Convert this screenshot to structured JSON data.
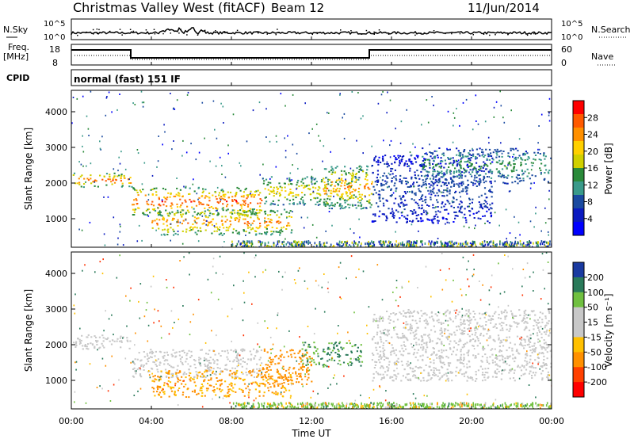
{
  "header": {
    "station": "Christmas Valley West (fitACF)",
    "beam": "Beam 12",
    "date": "11/Jun/2014"
  },
  "top_panels": {
    "nsky_label": "N.Sky",
    "nsearch_label": "N.Search",
    "nsky_ticks": [
      "10^5",
      "10^0"
    ],
    "freq_label": "Freq.",
    "freq_unit": "[MHz]",
    "freq_ticks": [
      "18",
      "8"
    ],
    "nave_label": "Nave",
    "nave_ticks": [
      "60",
      "0"
    ],
    "cpid_label": "CPID",
    "cpid_value": "normal (fast) 151 IF"
  },
  "chart_data": [
    {
      "type": "heatmap",
      "panel": "power",
      "ylabel": "Slant Range [km]",
      "yticks": [
        1000,
        2000,
        3000,
        4000
      ],
      "ylim": [
        200,
        4600
      ],
      "xlim_hours": [
        0,
        24
      ],
      "colorbar_label": "Power [dB]",
      "colorbar_ticks": [
        "28",
        "24",
        "20",
        "16",
        "12",
        "8",
        "4"
      ],
      "colorbar_colors": [
        "#ff0000",
        "#ff5a00",
        "#ff9000",
        "#ffd000",
        "#d0d000",
        "#2a8a3a",
        "#3a9a8a",
        "#1a4aa0",
        "#0a1ac0",
        "#0000ff"
      ],
      "features": [
        {
          "hours": [
            0,
            3.0
          ],
          "range_km": [
            1900,
            2300
          ],
          "power_db": 26
        },
        {
          "hours": [
            3.0,
            9.5
          ],
          "range_km": [
            1100,
            1900
          ],
          "power_db": 27
        },
        {
          "hours": [
            4.0,
            11.0
          ],
          "range_km": [
            550,
            1300
          ],
          "power_db": 24
        },
        {
          "hours": [
            9.5,
            14.5
          ],
          "range_km": [
            1400,
            2200
          ],
          "power_db": 20
        },
        {
          "hours": [
            12.5,
            15.0
          ],
          "range_km": [
            1300,
            2500
          ],
          "power_db": 24
        },
        {
          "hours": [
            15.0,
            21.0
          ],
          "range_km": [
            900,
            2800
          ],
          "power_db": 8
        },
        {
          "hours": [
            17.5,
            24.0
          ],
          "range_km": [
            2000,
            3000
          ],
          "power_db": 14
        }
      ]
    },
    {
      "type": "heatmap",
      "panel": "velocity",
      "ylabel": "Slant Range [km]",
      "yticks": [
        1000,
        2000,
        3000,
        4000
      ],
      "ylim": [
        200,
        4600
      ],
      "xlim_hours": [
        0,
        24
      ],
      "colorbar_label": "Velocity [m s⁻¹]",
      "colorbar_ticks": [
        "200",
        "100",
        "50",
        "15",
        "-15",
        "-50",
        "-100",
        "-200"
      ],
      "colorbar_colors": [
        "#1a3aa0",
        "#2a7a5a",
        "#70c040",
        "#c8c8c8",
        "#c8c8c8",
        "#ffc000",
        "#ff9000",
        "#ff4000",
        "#ff0000"
      ],
      "features": [
        {
          "hours": [
            0,
            3.0
          ],
          "range_km": [
            1900,
            2300
          ],
          "velocity": 0
        },
        {
          "hours": [
            3.0,
            9.5
          ],
          "range_km": [
            1100,
            1900
          ],
          "velocity": 0
        },
        {
          "hours": [
            4.0,
            11.0
          ],
          "range_km": [
            550,
            1300
          ],
          "velocity": -60
        },
        {
          "hours": [
            9.5,
            12.0
          ],
          "range_km": [
            900,
            1900
          ],
          "velocity": -80
        },
        {
          "hours": [
            11.5,
            14.5
          ],
          "range_km": [
            1400,
            2100
          ],
          "velocity": 60
        },
        {
          "hours": [
            15.0,
            24.0
          ],
          "range_km": [
            1000,
            3000
          ],
          "velocity": 0
        }
      ]
    }
  ],
  "x_axis": {
    "label": "Time UT",
    "ticks": [
      "00:00",
      "04:00",
      "08:00",
      "12:00",
      "16:00",
      "20:00",
      "00:00"
    ]
  }
}
